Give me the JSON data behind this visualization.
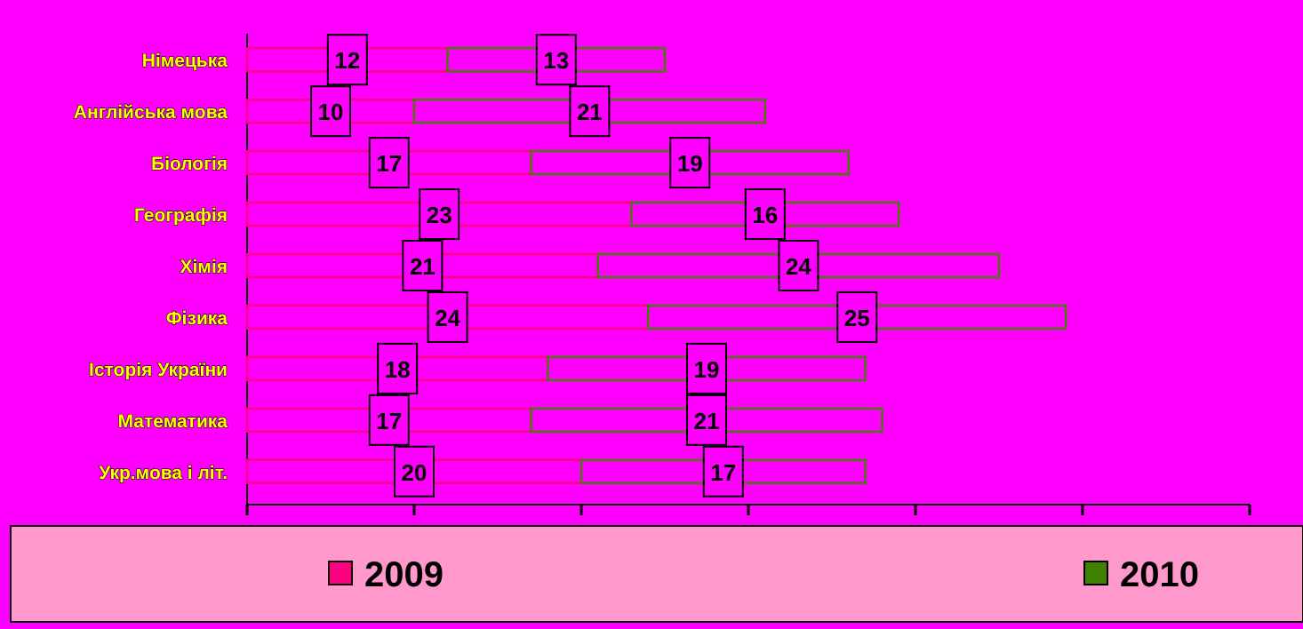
{
  "chart_data": {
    "type": "bar",
    "orientation": "horizontal",
    "stacked": true,
    "data_labels": true,
    "legend": "bottom",
    "grid": false,
    "categories": [
      "Німецька",
      "Англійська мова",
      "Біологія",
      "Географія",
      "Хімія",
      "Фізика",
      "Історія України",
      "Математика",
      "Укр.мова і літ."
    ],
    "xlim": [
      0,
      60
    ],
    "xticks": [
      {
        "value": 0,
        "label": null
      },
      {
        "value": 10,
        "label": null
      },
      {
        "value": 20,
        "label": null
      },
      {
        "value": 30,
        "label": null
      },
      {
        "value": 40,
        "label": null
      },
      {
        "value": 50,
        "label": null
      },
      {
        "value": 60,
        "label": null
      }
    ],
    "series": [
      {
        "name": "2009",
        "color": "#ff0080",
        "values": [
          12,
          10,
          17,
          23,
          21,
          24,
          18,
          17,
          20
        ]
      },
      {
        "name": "2010",
        "color": "#408000",
        "values": [
          13,
          21,
          19,
          16,
          24,
          25,
          19,
          21,
          17
        ]
      }
    ]
  }
}
